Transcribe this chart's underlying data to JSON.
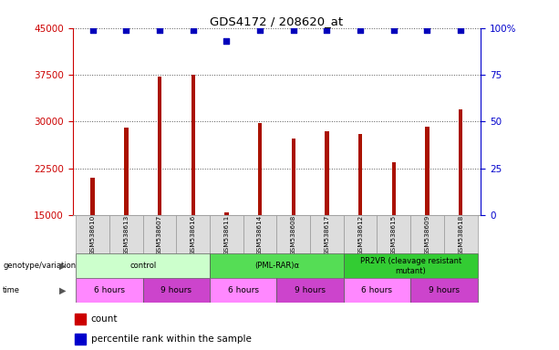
{
  "title": "GDS4172 / 208620_at",
  "samples": [
    "GSM538610",
    "GSM538613",
    "GSM538607",
    "GSM538616",
    "GSM538611",
    "GSM538614",
    "GSM538608",
    "GSM538617",
    "GSM538612",
    "GSM538615",
    "GSM538609",
    "GSM538618"
  ],
  "counts": [
    21000,
    29000,
    37200,
    37500,
    15500,
    29800,
    27300,
    28500,
    28000,
    23500,
    29200,
    32000
  ],
  "percentile_ranks": [
    99,
    99,
    99,
    99,
    93,
    99,
    99,
    99,
    99,
    99,
    99,
    99
  ],
  "ylim_left": [
    15000,
    45000
  ],
  "yticks_left": [
    15000,
    22500,
    30000,
    37500,
    45000
  ],
  "ylim_right": [
    0,
    100
  ],
  "yticks_right": [
    0,
    25,
    50,
    75,
    100
  ],
  "bar_color": "#aa1100",
  "percentile_color": "#0000bb",
  "bar_width": 0.12,
  "genotype_groups": [
    {
      "label": "control",
      "start": 0,
      "end": 4,
      "color": "#ccffcc"
    },
    {
      "label": "(PML-RAR)α",
      "start": 4,
      "end": 8,
      "color": "#55dd55"
    },
    {
      "label": "PR2VR (cleavage resistant\nmutant)",
      "start": 8,
      "end": 12,
      "color": "#33cc33"
    }
  ],
  "time_groups": [
    {
      "label": "6 hours",
      "start": 0,
      "end": 2,
      "color": "#ff88ff"
    },
    {
      "label": "9 hours",
      "start": 2,
      "end": 4,
      "color": "#cc44cc"
    },
    {
      "label": "6 hours",
      "start": 4,
      "end": 6,
      "color": "#ff88ff"
    },
    {
      "label": "9 hours",
      "start": 6,
      "end": 8,
      "color": "#cc44cc"
    },
    {
      "label": "6 hours",
      "start": 8,
      "end": 10,
      "color": "#ff88ff"
    },
    {
      "label": "9 hours",
      "start": 10,
      "end": 12,
      "color": "#cc44cc"
    }
  ],
  "left_axis_color": "#cc0000",
  "right_axis_color": "#0000cc",
  "grid_color": "#555555",
  "sample_box_color": "#dddddd",
  "legend_count_color": "#cc0000",
  "legend_percentile_color": "#0000cc",
  "right_ytick_labels": [
    "0",
    "25",
    "50",
    "75",
    "100%"
  ]
}
